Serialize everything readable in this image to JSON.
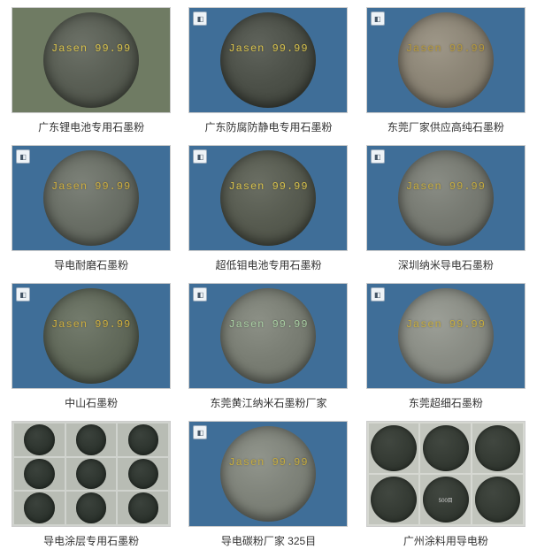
{
  "grid": {
    "columns": 3,
    "cell_border_color": "#cccccc",
    "caption_color": "#333333",
    "caption_fontsize": 12
  },
  "items": [
    {
      "caption": "广东锂电池专用石墨粉",
      "thumb": {
        "kind": "single",
        "bg_color": "#6f7b63",
        "circle_color": "#5a5f55",
        "watermark_text": "Jasen 99.99",
        "watermark_color": "#d9c24b",
        "badge": false
      }
    },
    {
      "caption": "广东防腐防静电专用石墨粉",
      "thumb": {
        "kind": "single",
        "bg_color": "#3f6e98",
        "circle_color": "#4d5149",
        "watermark_text": "Jasen 99.99",
        "watermark_color": "#d9c24b",
        "badge": true
      }
    },
    {
      "caption": "东莞厂家供应高纯石墨粉",
      "thumb": {
        "kind": "single",
        "bg_color": "#3f6e98",
        "circle_color": "#8c8576",
        "watermark_text": "Jasen 99.99",
        "watermark_color": "#b89a3a",
        "badge": true
      }
    },
    {
      "caption": "导电耐磨石墨粉",
      "thumb": {
        "kind": "single",
        "bg_color": "#3f6e98",
        "circle_color": "#6a6f66",
        "watermark_text": "Jasen 99.99",
        "watermark_color": "#cfae3e",
        "badge": true
      }
    },
    {
      "caption": "超低钼电池专用石墨粉",
      "thumb": {
        "kind": "single",
        "bg_color": "#3f6e98",
        "circle_color": "#585c51",
        "watermark_text": "Jasen 99.99",
        "watermark_color": "#d9c24b",
        "badge": true
      }
    },
    {
      "caption": "深圳纳米导电石墨粉",
      "thumb": {
        "kind": "single",
        "bg_color": "#3f6e98",
        "circle_color": "#777a72",
        "watermark_text": "Jasen 99.99",
        "watermark_color": "#c8ad3d",
        "badge": true
      }
    },
    {
      "caption": "中山石墨粉",
      "thumb": {
        "kind": "single",
        "bg_color": "#3f6e98",
        "circle_color": "#626a5b",
        "watermark_text": "Jasen 99.99",
        "watermark_color": "#cfae3e",
        "badge": true
      }
    },
    {
      "caption": "东莞黄江纳米石墨粉厂家",
      "thumb": {
        "kind": "single",
        "bg_color": "#3f6e98",
        "circle_color": "#7a7e74",
        "watermark_text": "Jasen 99.99",
        "watermark_color": "#a9cfa3",
        "badge": true
      }
    },
    {
      "caption": "东莞超细石墨粉",
      "thumb": {
        "kind": "single",
        "bg_color": "#3f6e98",
        "circle_color": "#8a8d85",
        "watermark_text": "Jasen 99.99",
        "watermark_color": "#c8ad3d",
        "badge": true
      }
    },
    {
      "caption": "导电涂层专用石墨粉",
      "thumb": {
        "kind": "multi",
        "bg_color": "#d0d3ce",
        "cols": 3,
        "rows": 3,
        "cell_bg": "#b8bcb4",
        "circle_color": "#2f3630",
        "circle_label_color": "#d0d0d0",
        "labels": [
          "",
          "",
          "",
          "",
          "",
          "",
          "",
          "",
          ""
        ],
        "badge": true
      }
    },
    {
      "caption": "导电碳粉厂家 325目",
      "thumb": {
        "kind": "single",
        "bg_color": "#3f6e98",
        "circle_color": "#7f837a",
        "watermark_text": "Jasen 99.99",
        "watermark_color": "#c8ad3d",
        "badge": true
      }
    },
    {
      "caption": "广州涂料用导电粉",
      "thumb": {
        "kind": "multi",
        "bg_color": "#d6d8d2",
        "cols": 3,
        "rows": 2,
        "cell_bg": "#c2c5bd",
        "circle_color": "#353b34",
        "circle_label_color": "#d0d0d0",
        "labels": [
          "",
          "",
          "",
          "",
          "500目",
          ""
        ],
        "badge": true
      }
    }
  ]
}
